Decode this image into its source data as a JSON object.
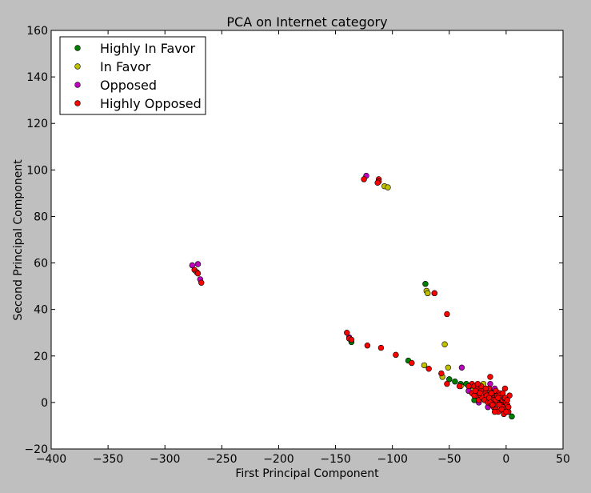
{
  "chart_data": {
    "type": "scatter",
    "title": "PCA on Internet category",
    "xlabel": "First Principal Component",
    "ylabel": "Second Principal Component",
    "xlim": [
      -400,
      50
    ],
    "ylim": [
      -20,
      160
    ],
    "xticks": [
      -400,
      -350,
      -300,
      -250,
      -200,
      -150,
      -100,
      -50,
      0,
      50
    ],
    "yticks": [
      -20,
      0,
      20,
      40,
      60,
      80,
      100,
      120,
      140,
      160
    ],
    "xtick_labels": [
      "−400",
      "−350",
      "−300",
      "−250",
      "−200",
      "−150",
      "−100",
      "−50",
      "0",
      "50"
    ],
    "ytick_labels": [
      "−20",
      "0",
      "20",
      "40",
      "60",
      "80",
      "100",
      "120",
      "140",
      "160"
    ],
    "legend_position": "upper-left",
    "grid": false,
    "series": [
      {
        "name": "Highly In Favor",
        "color": "#008000",
        "points": [
          [
            -71,
            51
          ],
          [
            -136,
            26
          ],
          [
            -86,
            18
          ],
          [
            -50,
            10
          ],
          [
            -45,
            9
          ],
          [
            -35,
            8
          ],
          [
            -20,
            5
          ],
          [
            -25,
            4
          ],
          [
            -10,
            3
          ],
          [
            -5,
            1
          ],
          [
            -2,
            -1
          ],
          [
            5,
            -6
          ],
          [
            -28,
            1
          ],
          [
            -15,
            3
          ],
          [
            -40,
            8
          ],
          [
            -30,
            6
          ],
          [
            -12,
            5
          ],
          [
            -18,
            1
          ],
          [
            -3,
            -3
          ],
          [
            0,
            -2
          ]
        ]
      },
      {
        "name": "In Favor",
        "color": "#bfbf00",
        "points": [
          [
            -107,
            93
          ],
          [
            -104,
            92.5
          ],
          [
            -70,
            48
          ],
          [
            -69,
            47
          ],
          [
            -63,
            47
          ],
          [
            -54,
            25
          ],
          [
            -51,
            15
          ],
          [
            -72,
            16
          ],
          [
            -56,
            11
          ],
          [
            -40,
            7
          ],
          [
            -20,
            8
          ],
          [
            -15,
            6
          ],
          [
            -10,
            4
          ],
          [
            -25,
            3
          ],
          [
            -8,
            2
          ],
          [
            -5,
            0
          ],
          [
            -2,
            -3
          ],
          [
            1,
            -4
          ],
          [
            -18,
            2
          ],
          [
            -30,
            5
          ],
          [
            -12,
            1
          ]
        ]
      },
      {
        "name": "Opposed",
        "color": "#bf00bf",
        "points": [
          [
            -276,
            59
          ],
          [
            -271,
            59.5
          ],
          [
            -269,
            53
          ],
          [
            -123,
            97.5
          ],
          [
            -138,
            28
          ],
          [
            -39,
            15
          ],
          [
            -33,
            5
          ],
          [
            -24,
            0
          ],
          [
            -16,
            -2
          ],
          [
            -14,
            8
          ],
          [
            -10,
            6
          ],
          [
            -8,
            4
          ],
          [
            -20,
            2
          ],
          [
            -6,
            1
          ],
          [
            -3,
            -1
          ],
          [
            -1,
            -4
          ],
          [
            -12,
            3
          ]
        ]
      },
      {
        "name": "Highly Opposed",
        "color": "#ff0000",
        "points": [
          [
            -274,
            57
          ],
          [
            -272,
            56
          ],
          [
            -271,
            55.5
          ],
          [
            -268,
            51.5
          ],
          [
            -125,
            96
          ],
          [
            -112,
            96
          ],
          [
            -112,
            95
          ],
          [
            -113,
            94.5
          ],
          [
            -63,
            47
          ],
          [
            -52,
            38
          ],
          [
            -140,
            30
          ],
          [
            -138,
            27.5
          ],
          [
            -136,
            27
          ],
          [
            -122,
            24.5
          ],
          [
            -110,
            23.5
          ],
          [
            -97,
            20.5
          ],
          [
            -83,
            17
          ],
          [
            -68,
            14.5
          ],
          [
            -57,
            12.5
          ],
          [
            -52,
            8
          ],
          [
            -41,
            7
          ],
          [
            -30,
            8
          ],
          [
            -28,
            7
          ],
          [
            -25,
            6
          ],
          [
            -22,
            5
          ],
          [
            -20,
            5
          ],
          [
            -18,
            4
          ],
          [
            -15,
            6
          ],
          [
            -14,
            11
          ],
          [
            -12,
            3
          ],
          [
            -10,
            2
          ],
          [
            -9,
            5
          ],
          [
            -8,
            3
          ],
          [
            -7,
            1
          ],
          [
            -6,
            4
          ],
          [
            -5,
            2
          ],
          [
            -4,
            0
          ],
          [
            -3,
            1
          ],
          [
            -2,
            -1
          ],
          [
            -1,
            6
          ],
          [
            0,
            -2
          ],
          [
            1,
            -3
          ],
          [
            2,
            -4
          ],
          [
            3,
            3
          ],
          [
            -26,
            3
          ],
          [
            -24,
            1
          ],
          [
            -21,
            2
          ],
          [
            -19,
            1
          ],
          [
            -16,
            0
          ],
          [
            -13,
            -1
          ],
          [
            -11,
            -2
          ],
          [
            -9,
            -3
          ],
          [
            -7,
            -4
          ],
          [
            -5,
            -1
          ],
          [
            -4,
            3
          ],
          [
            -3,
            -2
          ],
          [
            -2,
            2
          ],
          [
            -1,
            -3
          ],
          [
            0,
            0
          ],
          [
            1,
            -1
          ],
          [
            2,
            -2
          ],
          [
            -30,
            4
          ],
          [
            -28,
            3
          ],
          [
            -27,
            5
          ],
          [
            -23,
            4
          ],
          [
            -17,
            3
          ],
          [
            -15,
            2
          ],
          [
            -13,
            4
          ],
          [
            -11,
            1
          ],
          [
            -8,
            0
          ],
          [
            -6,
            -1
          ],
          [
            -4,
            -3
          ],
          [
            -2,
            -5
          ],
          [
            0,
            -4
          ],
          [
            -10,
            -4
          ],
          [
            -14,
            0
          ],
          [
            -12,
            -1
          ],
          [
            -18,
            6
          ],
          [
            -22,
            7
          ],
          [
            -25,
            8
          ],
          [
            -33,
            7
          ],
          [
            -6,
            3
          ],
          [
            -3,
            4
          ],
          [
            -1,
            2
          ],
          [
            1,
            1
          ],
          [
            -9,
            1
          ],
          [
            -7,
            2
          ]
        ]
      }
    ]
  }
}
